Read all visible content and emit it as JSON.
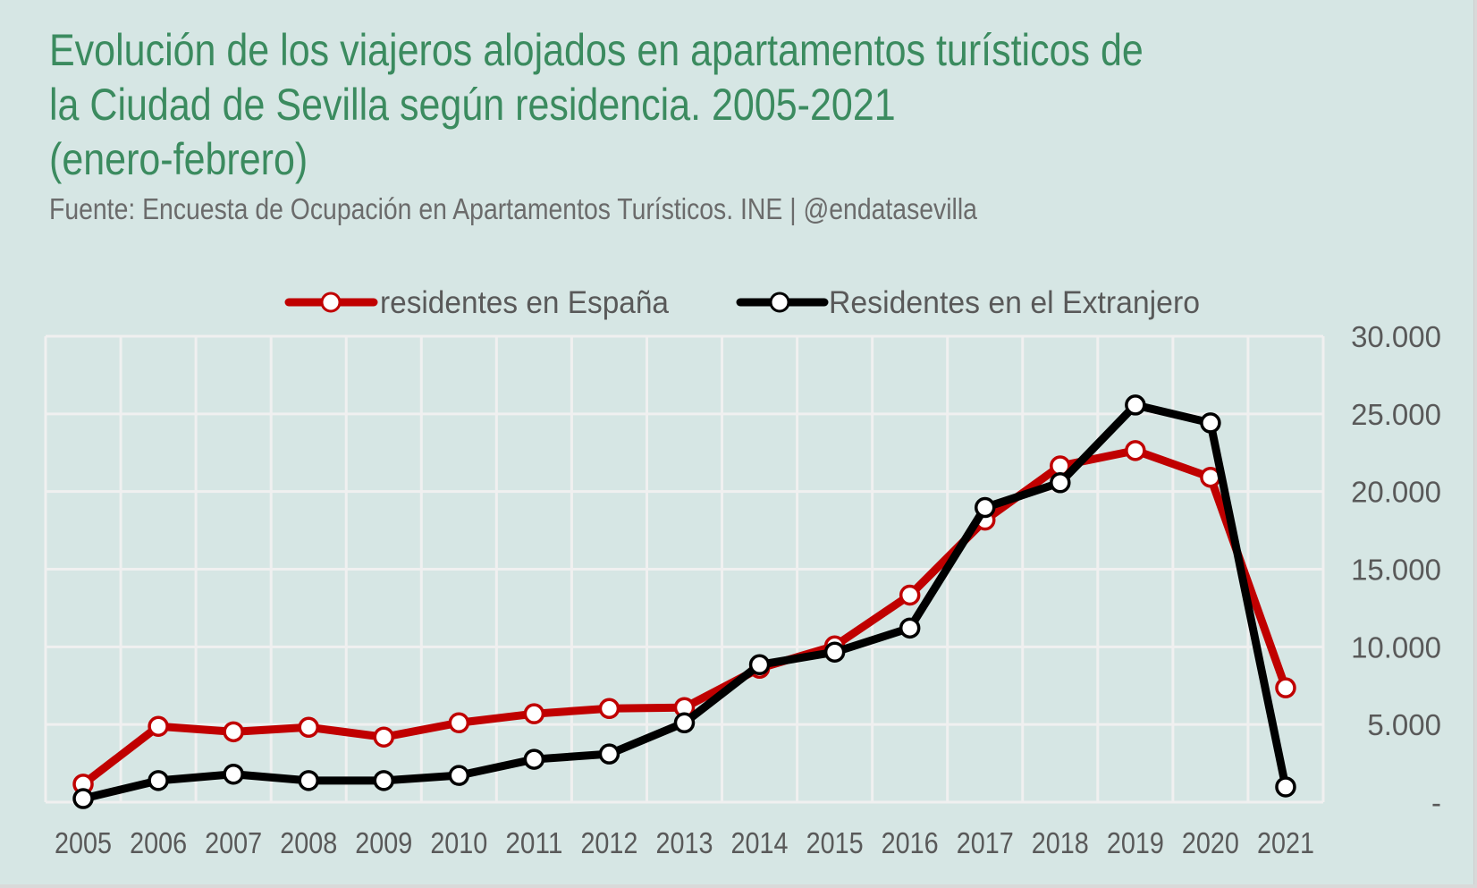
{
  "title": {
    "lines": [
      "Evolución de los viajeros alojados en apartamentos turísticos de",
      "la Ciudad de Sevilla según residencia. 2005-2021",
      "(enero-febrero)"
    ]
  },
  "subtitle": "Fuente: Encuesta de Ocupación en Apartamentos Turísticos. INE | @endatasevilla",
  "colors": {
    "background": "#d6e6e4",
    "title": "#3b8b5f",
    "grid": "#f0f0f0",
    "text": "#595959"
  },
  "chart_data": {
    "type": "line",
    "title": "Evolución de los viajeros alojados en apartamentos turísticos de la Ciudad de Sevilla según residencia. 2005-2021 (enero-febrero)",
    "subtitle": "Fuente: Encuesta de Ocupación en Apartamentos Turísticos. INE | @endatasevilla",
    "xlabel": "",
    "ylabel": "",
    "x": [
      "2005",
      "2006",
      "2007",
      "2008",
      "2009",
      "2010",
      "2011",
      "2012",
      "2013",
      "2014",
      "2015",
      "2016",
      "2017",
      "2018",
      "2019",
      "2020",
      "2021"
    ],
    "ylim": [
      0,
      30000
    ],
    "yticks": [
      0,
      5000,
      10000,
      15000,
      20000,
      25000,
      30000
    ],
    "ytick_labels": [
      "-",
      "5.000",
      "10.000",
      "15.000",
      "20.000",
      "25.000",
      "30.000"
    ],
    "y_axis_side": "right",
    "grid": true,
    "legend_position": "top",
    "series": [
      {
        "name": "residentes en España",
        "color": "#c00000",
        "values": [
          1160,
          4880,
          4530,
          4820,
          4190,
          5110,
          5690,
          6030,
          6090,
          8620,
          10060,
          13330,
          18160,
          21650,
          22640,
          20920,
          7360
        ]
      },
      {
        "name": "Residentes en el Extranjero",
        "color": "#000000",
        "values": [
          230,
          1390,
          1800,
          1390,
          1390,
          1720,
          2760,
          3100,
          5110,
          8850,
          9660,
          11210,
          18970,
          20570,
          25570,
          24420,
          980
        ]
      }
    ]
  }
}
